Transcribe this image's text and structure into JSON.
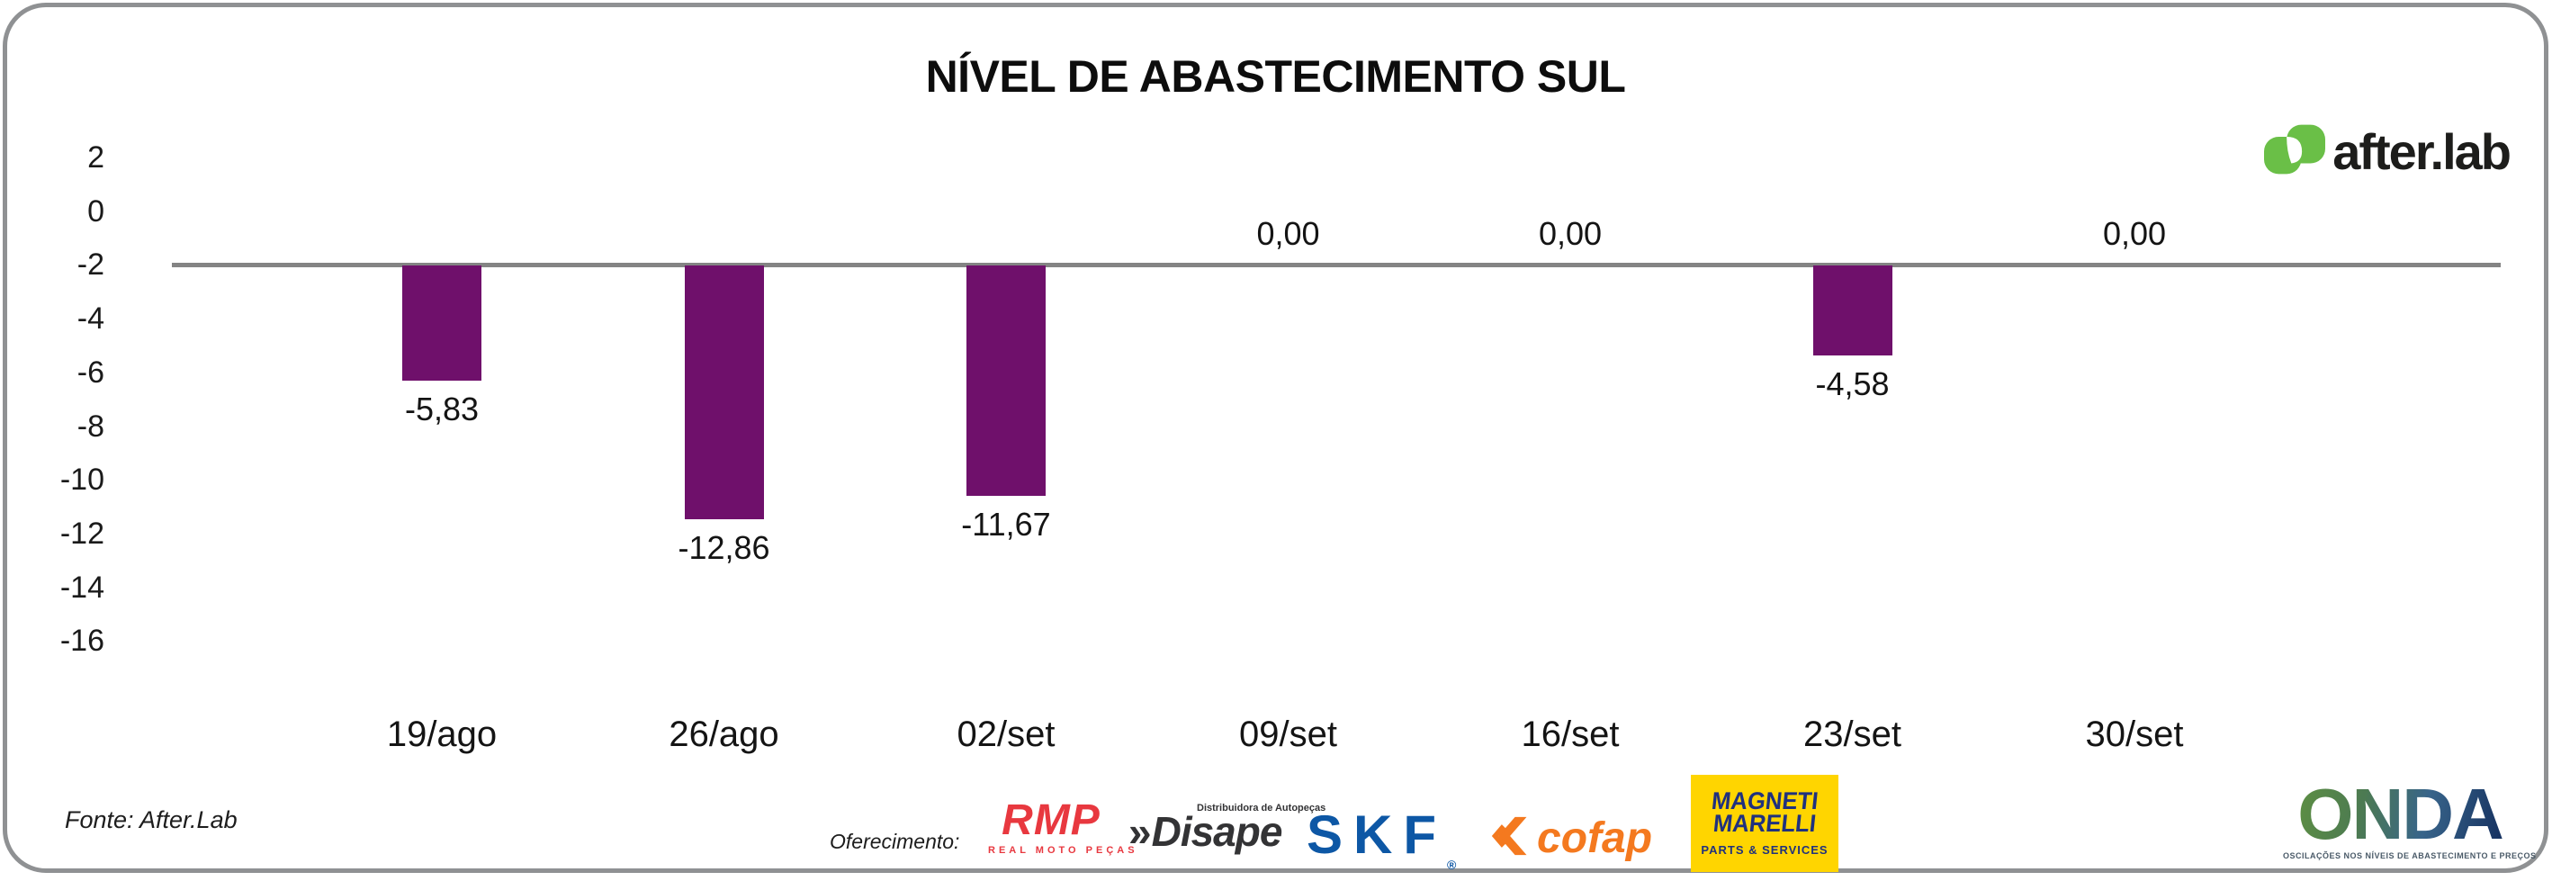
{
  "title": "NÍVEL DE ABASTECIMENTO SUL",
  "brand": {
    "wordmark": "after.lab"
  },
  "chart_data": {
    "type": "bar",
    "title": "NÍVEL DE ABASTECIMENTO SUL",
    "categories": [
      "19/ago",
      "26/ago",
      "02/set",
      "09/set",
      "16/set",
      "23/set",
      "30/set"
    ],
    "values": [
      -5.83,
      -12.86,
      -11.67,
      0,
      0,
      -4.58,
      0
    ],
    "value_labels": [
      "-5,83",
      "-12,86",
      "-11,67",
      "0,00",
      "0,00",
      "-4,58",
      "0,00"
    ],
    "y_ticks": [
      "2",
      "0",
      "-2",
      "-4",
      "-6",
      "-8",
      "-10",
      "-12",
      "-14",
      "-16"
    ],
    "ylim": [
      -16,
      2
    ],
    "grid": false,
    "legend": "none",
    "bar_color": "#6F106B",
    "axis_line_color": "#848484"
  },
  "footer": {
    "source": "Fonte: After.Lab",
    "sponsor_label": "Oferecimento:",
    "sponsors": [
      {
        "name": "RMP",
        "subtext": "REAL MOTO PEÇAS"
      },
      {
        "name": "Disape",
        "subtext": "Distribuidora de Autopeças",
        "icon_text": "»"
      },
      {
        "name": "SKF",
        "reg_mark": "®"
      },
      {
        "name": "cofap"
      },
      {
        "name_line1": "MAGNETI",
        "name_line2": "MARELLI",
        "subtext": "PARTS & SERVICES"
      }
    ],
    "onda": {
      "name": "ONDA",
      "tagline": "OSCILAÇÕES NOS NÍVEIS DE ABASTECIMENTO E PREÇOS"
    }
  },
  "colors": {
    "bar_purple": "#6F106B",
    "axis_gray": "#848484",
    "card_border": "#8F9193",
    "afterlab_green": "#6ABF47",
    "rmp_red": "#E8383F",
    "disape_dark": "#333335",
    "skf_blue": "#0D57A5",
    "cofap_orange": "#F4791F",
    "marelli_yellow": "#FFD500",
    "marelli_blue": "#20317E"
  }
}
